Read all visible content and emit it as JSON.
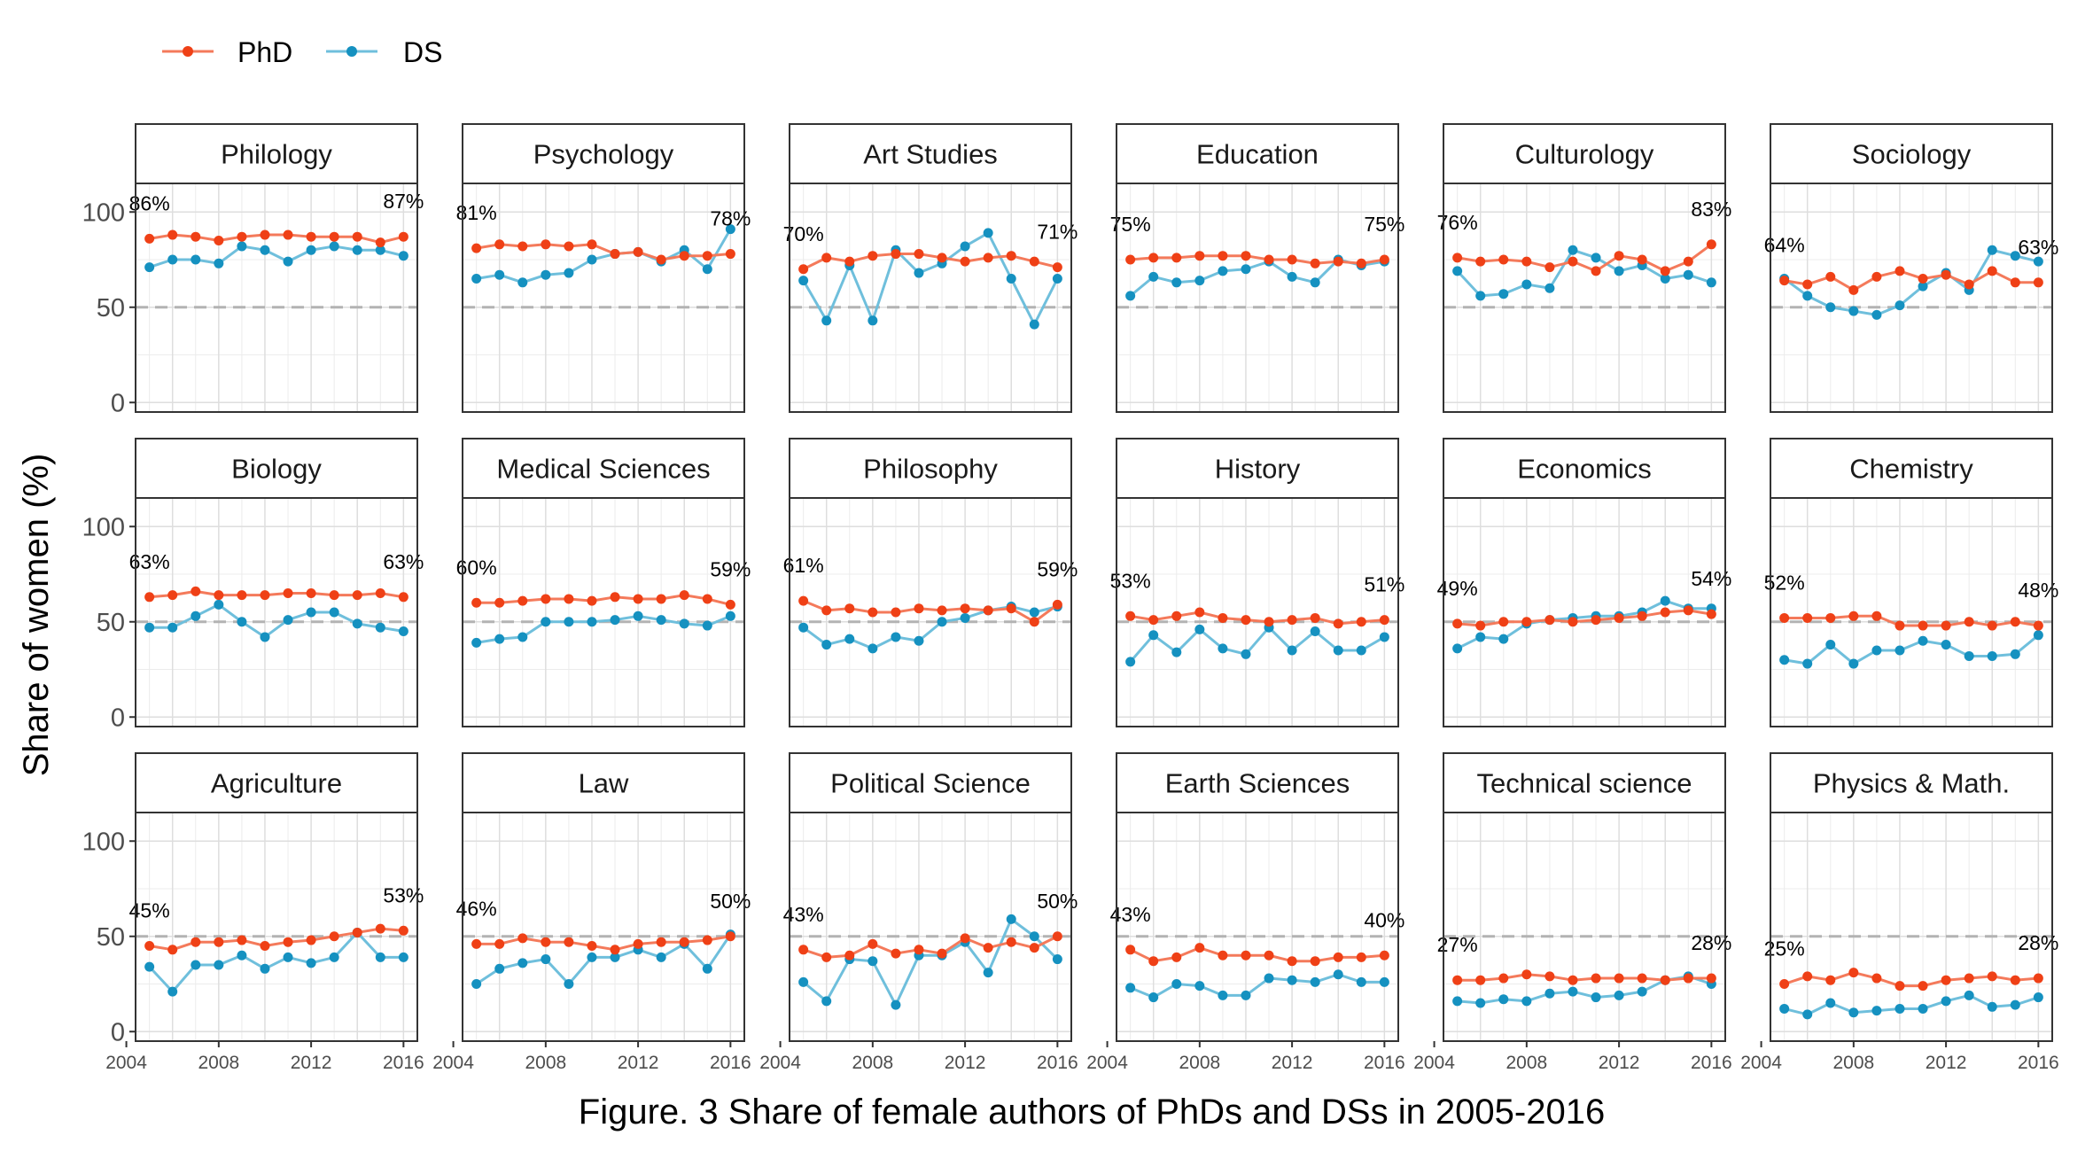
{
  "caption": "Figure. 3 Share of female authors of PhDs and DSs in 2005-2016",
  "chart_data": {
    "type": "line",
    "ylabel": "Share of women (%)",
    "ylim": [
      -5,
      115
    ],
    "yticks": [
      0,
      50,
      100
    ],
    "xlim": [
      2004.4,
      2016.6
    ],
    "xticks": [
      2004,
      2008,
      2012,
      2016
    ],
    "reference_line": 50,
    "grid": true,
    "legend_position": "top-left",
    "colors": {
      "PhD": "#ef4016",
      "DS": "#1591c0"
    },
    "series_names": [
      "PhD",
      "DS"
    ],
    "x": [
      2005,
      2006,
      2007,
      2008,
      2009,
      2010,
      2011,
      2012,
      2013,
      2014,
      2015,
      2016
    ],
    "panels": [
      {
        "title": "Philology",
        "first_label": "86%",
        "last_label": "87%",
        "phd": [
          86,
          88,
          87,
          85,
          87,
          88,
          88,
          87,
          87,
          87,
          84,
          87
        ],
        "ds": [
          71,
          75,
          75,
          73,
          82,
          80,
          74,
          80,
          82,
          80,
          80,
          77
        ]
      },
      {
        "title": "Psychology",
        "first_label": "81%",
        "last_label": "78%",
        "phd": [
          81,
          83,
          82,
          83,
          82,
          83,
          78,
          79,
          75,
          77,
          77,
          78
        ],
        "ds": [
          65,
          67,
          63,
          67,
          68,
          75,
          78,
          79,
          74,
          80,
          70,
          91
        ]
      },
      {
        "title": "Art Studies",
        "first_label": "70%",
        "last_label": "71%",
        "phd": [
          70,
          76,
          74,
          77,
          78,
          78,
          76,
          74,
          76,
          77,
          74,
          71
        ],
        "ds": [
          64,
          43,
          72,
          43,
          80,
          68,
          73,
          82,
          89,
          65,
          41,
          65
        ]
      },
      {
        "title": "Education",
        "first_label": "75%",
        "last_label": "75%",
        "phd": [
          75,
          76,
          76,
          77,
          77,
          77,
          75,
          75,
          73,
          74,
          73,
          75
        ],
        "ds": [
          56,
          66,
          63,
          64,
          69,
          70,
          74,
          66,
          63,
          75,
          72,
          74
        ]
      },
      {
        "title": "Culturology",
        "first_label": "76%",
        "last_label": "83%",
        "phd": [
          76,
          74,
          75,
          74,
          71,
          74,
          69,
          77,
          75,
          69,
          74,
          83
        ],
        "ds": [
          69,
          56,
          57,
          62,
          60,
          80,
          76,
          69,
          72,
          65,
          67,
          63
        ]
      },
      {
        "title": "Sociology",
        "first_label": "64%",
        "last_label": "63%",
        "phd": [
          64,
          62,
          66,
          59,
          66,
          69,
          65,
          67,
          62,
          69,
          63,
          63
        ],
        "ds": [
          65,
          56,
          50,
          48,
          46,
          51,
          61,
          68,
          59,
          80,
          77,
          74
        ]
      },
      {
        "title": "Biology",
        "first_label": "63%",
        "last_label": "63%",
        "phd": [
          63,
          64,
          66,
          64,
          64,
          64,
          65,
          65,
          64,
          64,
          65,
          63
        ],
        "ds": [
          47,
          47,
          53,
          59,
          50,
          42,
          51,
          55,
          55,
          49,
          47,
          45
        ]
      },
      {
        "title": "Medical Sciences",
        "first_label": "60%",
        "last_label": "59%",
        "phd": [
          60,
          60,
          61,
          62,
          62,
          61,
          63,
          62,
          62,
          64,
          62,
          59
        ],
        "ds": [
          39,
          41,
          42,
          50,
          50,
          50,
          51,
          53,
          51,
          49,
          48,
          53
        ]
      },
      {
        "title": "Philosophy",
        "first_label": "61%",
        "last_label": "59%",
        "phd": [
          61,
          56,
          57,
          55,
          55,
          57,
          56,
          57,
          56,
          57,
          50,
          59
        ],
        "ds": [
          47,
          38,
          41,
          36,
          42,
          40,
          50,
          52,
          56,
          58,
          55,
          58
        ]
      },
      {
        "title": "History",
        "first_label": "53%",
        "last_label": "51%",
        "phd": [
          53,
          51,
          53,
          55,
          52,
          51,
          50,
          51,
          52,
          49,
          50,
          51
        ],
        "ds": [
          29,
          43,
          34,
          46,
          36,
          33,
          47,
          35,
          45,
          35,
          35,
          42
        ]
      },
      {
        "title": "Economics",
        "first_label": "49%",
        "last_label": "54%",
        "phd": [
          49,
          48,
          50,
          50,
          51,
          50,
          51,
          52,
          53,
          55,
          56,
          54
        ],
        "ds": [
          36,
          42,
          41,
          49,
          51,
          52,
          53,
          53,
          55,
          61,
          57,
          57
        ]
      },
      {
        "title": "Chemistry",
        "first_label": "52%",
        "last_label": "48%",
        "phd": [
          52,
          52,
          52,
          53,
          53,
          48,
          48,
          48,
          50,
          48,
          50,
          48
        ],
        "ds": [
          30,
          28,
          38,
          28,
          35,
          35,
          40,
          38,
          32,
          32,
          33,
          43
        ]
      },
      {
        "title": "Agriculture",
        "first_label": "45%",
        "last_label": "53%",
        "phd": [
          45,
          43,
          47,
          47,
          48,
          45,
          47,
          48,
          50,
          52,
          54,
          53
        ],
        "ds": [
          34,
          21,
          35,
          35,
          40,
          33,
          39,
          36,
          39,
          52,
          39,
          39
        ]
      },
      {
        "title": "Law",
        "first_label": "46%",
        "last_label": "50%",
        "phd": [
          46,
          46,
          49,
          47,
          47,
          45,
          43,
          46,
          47,
          47,
          48,
          50
        ],
        "ds": [
          25,
          33,
          36,
          38,
          25,
          39,
          39,
          43,
          39,
          46,
          33,
          51
        ]
      },
      {
        "title": "Political Science",
        "first_label": "43%",
        "last_label": "50%",
        "phd": [
          43,
          39,
          40,
          46,
          41,
          43,
          41,
          49,
          44,
          47,
          44,
          50
        ],
        "ds": [
          26,
          16,
          38,
          37,
          14,
          40,
          40,
          47,
          31,
          59,
          50,
          38
        ]
      },
      {
        "title": "Earth Sciences",
        "first_label": "43%",
        "last_label": "40%",
        "phd": [
          43,
          37,
          39,
          44,
          40,
          40,
          40,
          37,
          37,
          39,
          39,
          40
        ],
        "ds": [
          23,
          18,
          25,
          24,
          19,
          19,
          28,
          27,
          26,
          30,
          26,
          26
        ]
      },
      {
        "title": "Technical science",
        "first_label": "27%",
        "last_label": "28%",
        "phd": [
          27,
          27,
          28,
          30,
          29,
          27,
          28,
          28,
          28,
          27,
          28,
          28
        ],
        "ds": [
          16,
          15,
          17,
          16,
          20,
          21,
          18,
          19,
          21,
          27,
          29,
          25
        ]
      },
      {
        "title": "Physics & Math.",
        "first_label": "25%",
        "last_label": "28%",
        "phd": [
          25,
          29,
          27,
          31,
          28,
          24,
          24,
          27,
          28,
          29,
          27,
          28
        ],
        "ds": [
          12,
          9,
          15,
          10,
          11,
          12,
          12,
          16,
          19,
          13,
          14,
          18
        ]
      }
    ]
  }
}
